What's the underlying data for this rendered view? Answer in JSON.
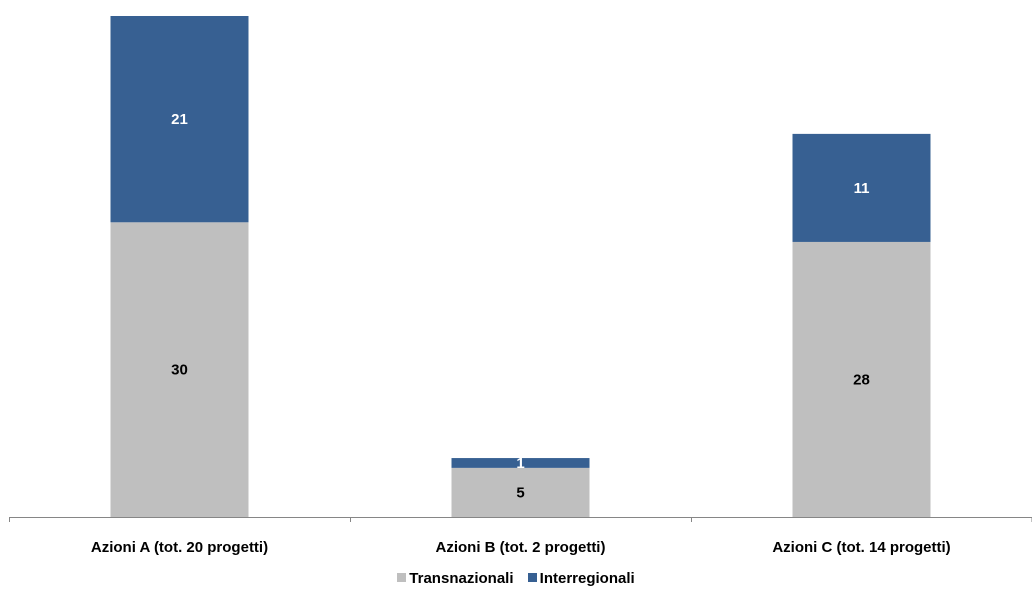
{
  "chart_data": {
    "type": "bar",
    "stacked": true,
    "categories": [
      "Azioni A (tot. 20 progetti)",
      "Azioni B (tot. 2 progetti)",
      "Azioni C (tot. 14 progetti)"
    ],
    "series": [
      {
        "name": "Transnazionali",
        "values": [
          30,
          5,
          28
        ],
        "color": "#BFBFBF",
        "label_color": "#000000"
      },
      {
        "name": "Interregionali",
        "values": [
          21,
          1,
          11
        ],
        "color": "#376092",
        "label_color": "#FFFFFF"
      }
    ],
    "ylim": [
      0,
      51
    ],
    "grid": false,
    "legend": "bottom-center",
    "xlabel": "",
    "ylabel": ""
  }
}
